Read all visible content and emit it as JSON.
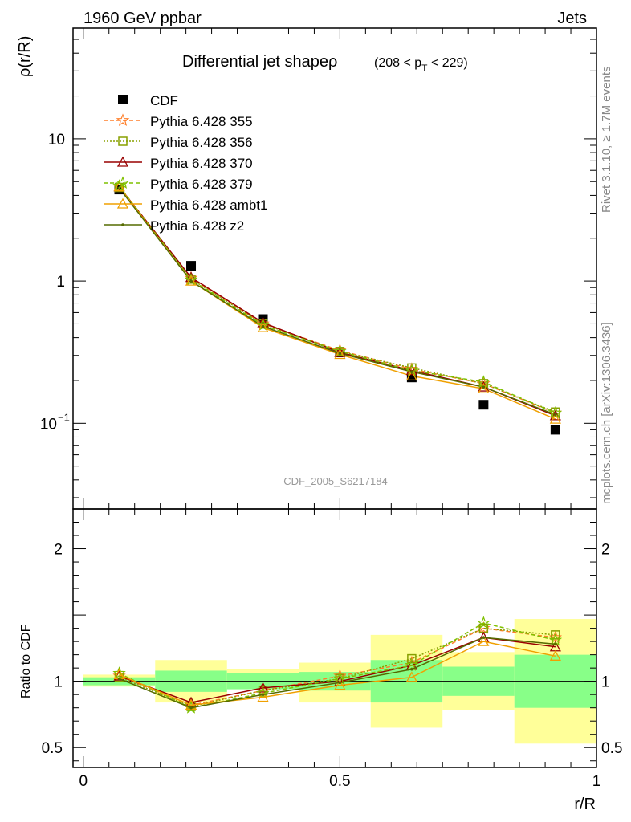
{
  "header": {
    "left": "1960 GeV ppbar",
    "right": "Jets"
  },
  "side_labels": {
    "rivet": "Rivet 3.1.10, ≥ 1.7M events",
    "mcplots": "mcplots.cern.ch [arXiv:1306.3436]"
  },
  "watermark": "CDF_2005_S6217184",
  "colors": {
    "CDF": "#000000",
    "p355": "#ff7f2a",
    "p356": "#88a000",
    "p370": "#990000",
    "p379": "#7fc000",
    "ambt1": "#f0a000",
    "z2": "#556b00",
    "band_inner": "#88ff88",
    "band_outer": "#ffff99"
  },
  "chart_data": [
    {
      "type": "scatter",
      "title": "Differential jet shapeρ",
      "title_range": "(208 < p_T < 229)",
      "ylabel": "ρ(r/R)",
      "xlabel": "",
      "yscale": "log",
      "ylim": [
        0.025,
        60
      ],
      "xlim": [
        -0.02,
        1.0
      ],
      "y_tick_labels": [
        "10^-1",
        "1",
        "10"
      ],
      "legend_position": "top-left",
      "x": [
        0.07,
        0.21,
        0.35,
        0.5,
        0.64,
        0.78,
        0.92
      ],
      "series": [
        {
          "name": "CDF",
          "marker": "square",
          "values": [
            4.4,
            1.28,
            0.54,
            0.315,
            0.21,
            0.135,
            0.09
          ]
        },
        {
          "name": "Pythia 6.428 355",
          "marker": "star",
          "dash": "5,3",
          "values": [
            4.6,
            1.05,
            0.5,
            0.325,
            0.24,
            0.19,
            0.118
          ]
        },
        {
          "name": "Pythia 6.428 356",
          "marker": "open-square",
          "dash": "2,2",
          "values": [
            4.55,
            1.03,
            0.5,
            0.32,
            0.245,
            0.19,
            0.12
          ]
        },
        {
          "name": "Pythia 6.428 370",
          "marker": "open-triangle",
          "dash": "",
          "values": [
            4.6,
            1.06,
            0.51,
            0.315,
            0.235,
            0.18,
            0.113
          ]
        },
        {
          "name": "Pythia 6.428 379",
          "marker": "star",
          "dash": "5,3",
          "values": [
            4.65,
            1.02,
            0.49,
            0.32,
            0.235,
            0.195,
            0.118
          ]
        },
        {
          "name": "Pythia 6.428 ambt1",
          "marker": "open-triangle",
          "dash": "",
          "values": [
            4.6,
            1.0,
            0.47,
            0.305,
            0.215,
            0.175,
            0.107
          ]
        },
        {
          "name": "Pythia 6.428 z2",
          "marker": "dot",
          "dash": "",
          "values": [
            4.5,
            1.0,
            0.48,
            0.31,
            0.23,
            0.18,
            0.115
          ]
        }
      ]
    },
    {
      "type": "line",
      "ylabel": "Ratio to CDF",
      "xlabel": "r/R",
      "ylim": [
        0.35,
        2.3
      ],
      "xlim": [
        -0.02,
        1.0
      ],
      "y_ticks": [
        "0.5",
        "1",
        "2"
      ],
      "x_ticks": [
        "0",
        "0.5",
        "1"
      ],
      "bins": [
        0.0,
        0.14,
        0.28,
        0.42,
        0.56,
        0.7,
        0.84,
        1.0
      ],
      "band_inner": [
        [
          0.97,
          1.03
        ],
        [
          0.92,
          1.08
        ],
        [
          0.94,
          1.06
        ],
        [
          0.93,
          1.07
        ],
        [
          0.84,
          1.16
        ],
        [
          0.89,
          1.11
        ],
        [
          0.8,
          1.2
        ]
      ],
      "band_outer": [
        [
          0.96,
          1.05
        ],
        [
          0.84,
          1.16
        ],
        [
          0.95,
          1.09
        ],
        [
          0.84,
          1.14
        ],
        [
          0.65,
          1.35
        ],
        [
          0.78,
          1.22
        ],
        [
          0.53,
          1.47
        ]
      ],
      "x": [
        0.07,
        0.21,
        0.35,
        0.5,
        0.64,
        0.78,
        0.92
      ],
      "series": [
        {
          "name": "Pythia 6.428 355",
          "values": [
            1.04,
            0.82,
            0.93,
            1.04,
            1.14,
            1.4,
            1.33
          ]
        },
        {
          "name": "Pythia 6.428 356",
          "values": [
            1.03,
            0.81,
            0.93,
            1.02,
            1.17,
            1.4,
            1.35
          ]
        },
        {
          "name": "Pythia 6.428 370",
          "values": [
            1.04,
            0.84,
            0.95,
            1.0,
            1.12,
            1.33,
            1.26
          ]
        },
        {
          "name": "Pythia 6.428 379",
          "values": [
            1.06,
            0.8,
            0.91,
            1.02,
            1.12,
            1.44,
            1.31
          ]
        },
        {
          "name": "Pythia 6.428 ambt1",
          "values": [
            1.05,
            0.82,
            0.88,
            0.97,
            1.03,
            1.3,
            1.19
          ]
        },
        {
          "name": "Pythia 6.428 z2",
          "values": [
            1.02,
            0.8,
            0.9,
            0.99,
            1.09,
            1.33,
            1.28
          ]
        }
      ]
    }
  ]
}
